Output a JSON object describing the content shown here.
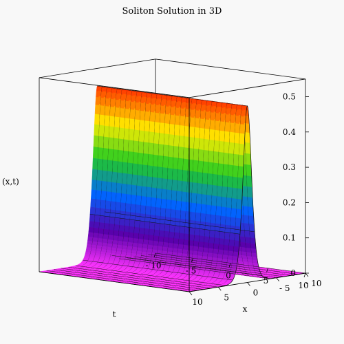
{
  "chart_data": {
    "type": "surface",
    "title": "Soliton Solution in 3D",
    "function_label": "(x,t)",
    "x_label": "x",
    "t_label": "t",
    "x_range": [
      -10,
      10
    ],
    "t_range": [
      -10,
      10
    ],
    "z_range": [
      0,
      0.55
    ],
    "z_ticks": [
      0,
      0.1,
      0.2,
      0.3,
      0.4,
      0.5
    ],
    "z_tick_labels": [
      "0",
      "0.1",
      "0.2",
      "0.3",
      "0.4",
      "0.5"
    ],
    "x_ticks": [
      10,
      5,
      0,
      -5,
      -10
    ],
    "t_ticks": [
      -10,
      -5,
      0,
      5,
      10
    ],
    "peak_amplitude": 0.5,
    "colormap": [
      "#ff3300",
      "#ffee00",
      "#22cc22",
      "#0066ff",
      "#5500aa",
      "#ff33ff"
    ]
  }
}
